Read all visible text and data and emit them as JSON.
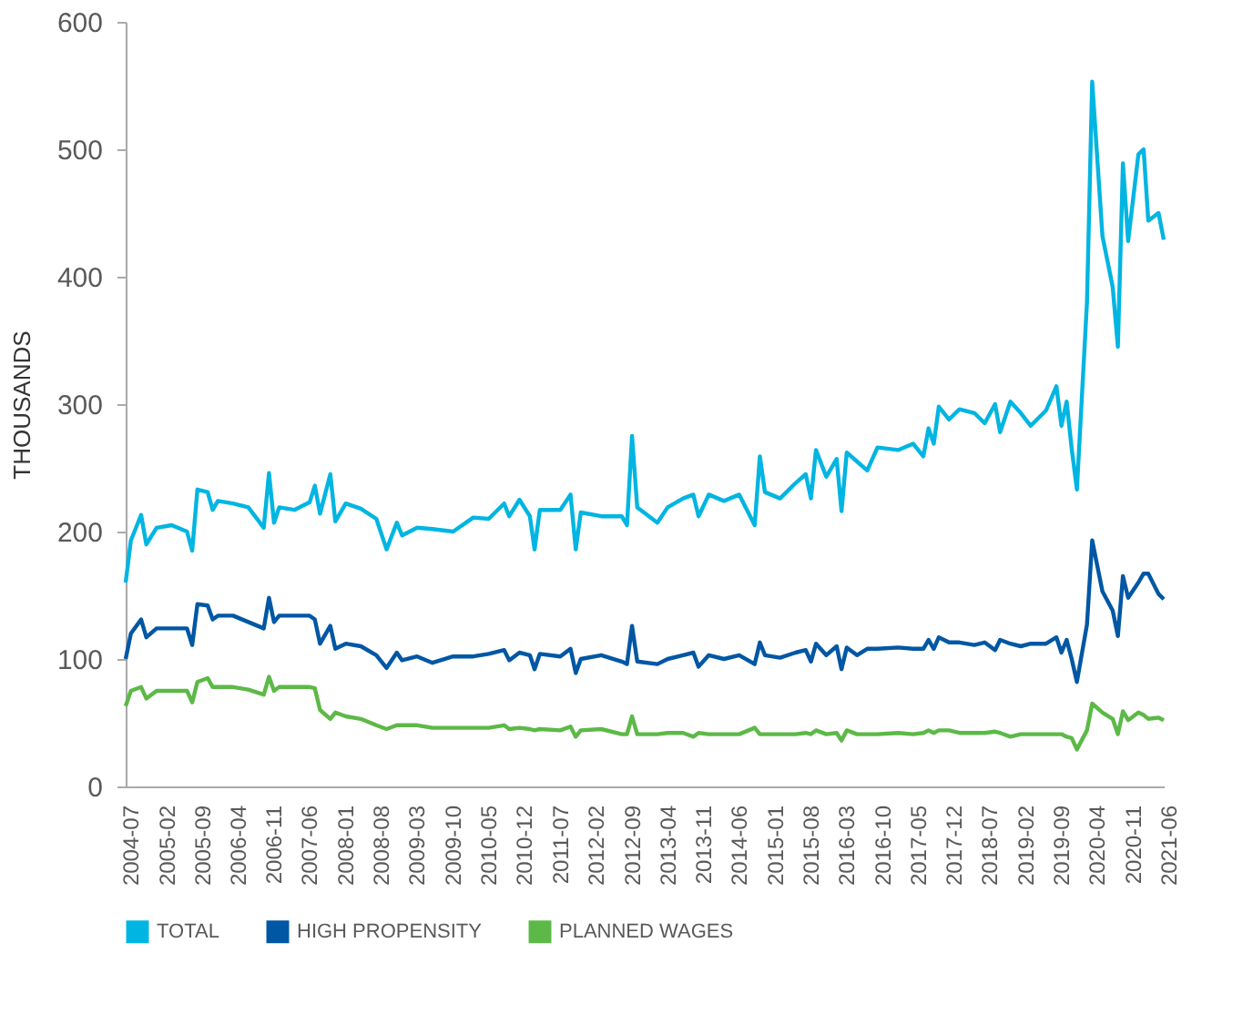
{
  "chart_data": {
    "type": "line",
    "ylabel": "THOUSANDS",
    "x": [
      "2004-07",
      "2004-08",
      "2004-10",
      "2004-11",
      "2005-01",
      "2005-04",
      "2005-07",
      "2005-08",
      "2005-09",
      "2005-11",
      "2005-12",
      "2006-01",
      "2006-04",
      "2006-07",
      "2006-10",
      "2006-11",
      "2006-12",
      "2007-01",
      "2007-04",
      "2007-07",
      "2007-08",
      "2007-09",
      "2007-11",
      "2007-12",
      "2008-02",
      "2008-05",
      "2008-08",
      "2008-10",
      "2008-12",
      "2009-01",
      "2009-04",
      "2009-07",
      "2009-11",
      "2010-03",
      "2010-06",
      "2010-09",
      "2010-10",
      "2010-12",
      "2011-02",
      "2011-03",
      "2011-04",
      "2011-08",
      "2011-10",
      "2011-11",
      "2011-12",
      "2012-04",
      "2012-08",
      "2012-09",
      "2012-10",
      "2012-11",
      "2013-03",
      "2013-05",
      "2013-08",
      "2013-10",
      "2013-11",
      "2014-01",
      "2014-04",
      "2014-07",
      "2014-10",
      "2014-11",
      "2014-12",
      "2015-03",
      "2015-06",
      "2015-08",
      "2015-09",
      "2015-10",
      "2015-12",
      "2016-02",
      "2016-03",
      "2016-04",
      "2016-06",
      "2016-08",
      "2016-10",
      "2017-02",
      "2017-05",
      "2017-07",
      "2017-08",
      "2017-09",
      "2017-10",
      "2017-12",
      "2018-02",
      "2018-05",
      "2018-07",
      "2018-09",
      "2018-10",
      "2018-12",
      "2019-02",
      "2019-04",
      "2019-07",
      "2019-09",
      "2019-10",
      "2019-11",
      "2019-12",
      "2020-01",
      "2020-03",
      "2020-04",
      "2020-06",
      "2020-08",
      "2020-09",
      "2020-10",
      "2020-11",
      "2021-01",
      "2021-02",
      "2021-03",
      "2021-05",
      "2021-06"
    ],
    "series": [
      {
        "name": "TOTAL",
        "color": "#00b5e2",
        "values": [
          160,
          193,
          213,
          190,
          203,
          205,
          200,
          185,
          233,
          231,
          217,
          224,
          222,
          219,
          203,
          246,
          207,
          219,
          217,
          223,
          236,
          214,
          245,
          208,
          222,
          218,
          210,
          186,
          207,
          197,
          203,
          202,
          200,
          211,
          210,
          222,
          212,
          225,
          212,
          186,
          217,
          217,
          229,
          186,
          215,
          212,
          212,
          205,
          275,
          219,
          207,
          219,
          226,
          229,
          212,
          229,
          224,
          229,
          205,
          259,
          231,
          226,
          238,
          245,
          226,
          264,
          243,
          257,
          216,
          262,
          255,
          248,
          266,
          264,
          269,
          259,
          281,
          269,
          298,
          288,
          296,
          293,
          285,
          300,
          278,
          302,
          293,
          283,
          295,
          314,
          283,
          302,
          265,
          233,
          380,
          553,
          432,
          392,
          345,
          489,
          428,
          496,
          500,
          444,
          450,
          429
        ]
      },
      {
        "name": "HIGH PROPENSITY",
        "color": "#0057a4",
        "values": [
          100,
          120,
          131,
          117,
          124,
          124,
          124,
          111,
          143,
          142,
          131,
          134,
          134,
          129,
          124,
          148,
          129,
          134,
          134,
          134,
          131,
          112,
          126,
          108,
          112,
          110,
          103,
          93,
          105,
          99,
          102,
          97,
          102,
          102,
          104,
          107,
          99,
          105,
          103,
          92,
          104,
          102,
          108,
          89,
          100,
          103,
          98,
          96,
          126,
          98,
          96,
          100,
          103,
          105,
          94,
          103,
          100,
          103,
          96,
          113,
          103,
          101,
          105,
          107,
          98,
          112,
          103,
          110,
          92,
          109,
          103,
          108,
          108,
          109,
          108,
          108,
          115,
          108,
          117,
          113,
          113,
          111,
          113,
          107,
          115,
          112,
          110,
          112,
          112,
          117,
          105,
          115,
          100,
          82,
          127,
          193,
          153,
          138,
          118,
          165,
          148,
          160,
          167,
          167,
          151,
          147
        ]
      },
      {
        "name": "PLANNED WAGES",
        "color": "#5cb947",
        "values": [
          63,
          75,
          78,
          69,
          75,
          75,
          75,
          66,
          82,
          85,
          78,
          78,
          78,
          76,
          72,
          86,
          75,
          78,
          78,
          78,
          77,
          60,
          53,
          58,
          55,
          53,
          48,
          45,
          48,
          48,
          48,
          46,
          46,
          46,
          46,
          48,
          45,
          46,
          45,
          44,
          45,
          44,
          47,
          39,
          44,
          45,
          41,
          41,
          55,
          41,
          41,
          42,
          42,
          39,
          42,
          41,
          41,
          41,
          46,
          41,
          41,
          41,
          41,
          42,
          41,
          44,
          41,
          42,
          36,
          44,
          41,
          41,
          41,
          42,
          41,
          42,
          44,
          42,
          44,
          44,
          42,
          42,
          42,
          43,
          42,
          39,
          41,
          41,
          41,
          41,
          41,
          39,
          38,
          29,
          44,
          65,
          58,
          53,
          41,
          59,
          52,
          58,
          56,
          53,
          54,
          52
        ]
      }
    ],
    "xlim": [
      "2004-07",
      "2021-06"
    ],
    "xticks": [
      "2004-07",
      "2005-02",
      "2005-09",
      "2006-04",
      "2006-11",
      "2007-06",
      "2008-01",
      "2008-08",
      "2009-03",
      "2009-10",
      "2010-05",
      "2010-12",
      "2011-07",
      "2012-02",
      "2012-09",
      "2013-04",
      "2013-11",
      "2014-06",
      "2015-01",
      "2015-08",
      "2016-03",
      "2016-10",
      "2017-05",
      "2017-12",
      "2018-07",
      "2019-02",
      "2019-09",
      "2020-04",
      "2020-11",
      "2021-06"
    ],
    "ylim": [
      0,
      600
    ],
    "yticks": [
      0,
      100,
      200,
      300,
      400,
      500,
      600
    ],
    "grid": false,
    "legend": "bottom",
    "marker": "none",
    "line_style": "solid"
  }
}
